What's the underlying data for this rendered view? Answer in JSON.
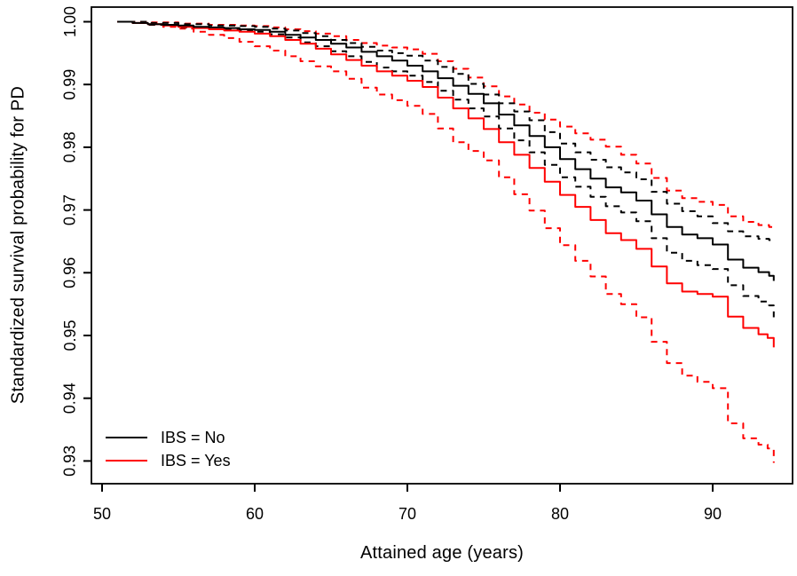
{
  "figure": {
    "background": "#ffffff",
    "axis_color": "#000000",
    "text_color": "#000000"
  },
  "chart_data": {
    "type": "line",
    "title": "",
    "xlabel": "Attained age (years)",
    "ylabel": "Standardized survival probability for PD",
    "xlim": [
      49.3,
      95.2
    ],
    "ylim": [
      0.9264,
      1.0023
    ],
    "grid": false,
    "x_ticks": [
      50,
      60,
      70,
      80,
      90
    ],
    "y_ticks": [
      "1.00",
      "0.99",
      "0.98",
      "0.97",
      "0.96",
      "0.95",
      "0.94",
      "0.93"
    ],
    "y_tick_values": [
      1.0,
      0.99,
      0.98,
      0.97,
      0.96,
      0.95,
      0.94,
      0.93
    ],
    "legend": {
      "position": "bottom-left",
      "entries": [
        {
          "label": "IBS = No",
          "color": "#000000"
        },
        {
          "label": "IBS = Yes",
          "color": "#ff0000"
        }
      ]
    },
    "series": [
      {
        "name": "IBS = Yes lower 95% CI",
        "color": "#ff0000",
        "style": "dashed",
        "points": [
          [
            51,
            1.0
          ],
          [
            52,
            0.9998
          ],
          [
            53,
            0.9995
          ],
          [
            54,
            0.9992
          ],
          [
            55,
            0.9989
          ],
          [
            56,
            0.9984
          ],
          [
            57,
            0.9979
          ],
          [
            58,
            0.9974
          ],
          [
            59,
            0.9968
          ],
          [
            60,
            0.9961
          ],
          [
            61,
            0.9954
          ],
          [
            62,
            0.9945
          ],
          [
            63,
            0.9937
          ],
          [
            64,
            0.9929
          ],
          [
            65,
            0.9921
          ],
          [
            66,
            0.9909
          ],
          [
            67,
            0.9895
          ],
          [
            68,
            0.9884
          ],
          [
            69,
            0.9875
          ],
          [
            70,
            0.9866
          ],
          [
            71,
            0.9853
          ],
          [
            72,
            0.983
          ],
          [
            73,
            0.9808
          ],
          [
            74,
            0.9794
          ],
          [
            75,
            0.9779
          ],
          [
            76,
            0.9752
          ],
          [
            77,
            0.9725
          ],
          [
            78,
            0.9699
          ],
          [
            79,
            0.9671
          ],
          [
            80,
            0.9644
          ],
          [
            81,
            0.9619
          ],
          [
            82,
            0.9594
          ],
          [
            83,
            0.9566
          ],
          [
            84,
            0.955
          ],
          [
            85,
            0.9529
          ],
          [
            86,
            0.949
          ],
          [
            87,
            0.9456
          ],
          [
            88,
            0.9436
          ],
          [
            89,
            0.9426
          ],
          [
            90,
            0.9416
          ],
          [
            91,
            0.936
          ],
          [
            92,
            0.9336
          ],
          [
            93,
            0.9326
          ],
          [
            93.6,
            0.932
          ],
          [
            94,
            0.9297
          ]
        ]
      },
      {
        "name": "IBS = Yes upper 95% CI",
        "color": "#ff0000",
        "style": "dashed",
        "points": [
          [
            51,
            1.0
          ],
          [
            53,
            0.9999
          ],
          [
            55,
            0.9997
          ],
          [
            57,
            0.9995
          ],
          [
            59,
            0.9994
          ],
          [
            60,
            0.9993
          ],
          [
            61,
            0.9991
          ],
          [
            62,
            0.9988
          ],
          [
            63,
            0.9985
          ],
          [
            64,
            0.9981
          ],
          [
            65,
            0.9977
          ],
          [
            66,
            0.9971
          ],
          [
            67,
            0.9966
          ],
          [
            68,
            0.9962
          ],
          [
            69,
            0.9959
          ],
          [
            70,
            0.9956
          ],
          [
            71,
            0.9949
          ],
          [
            72,
            0.9937
          ],
          [
            73,
            0.9925
          ],
          [
            74,
            0.9911
          ],
          [
            75,
            0.9897
          ],
          [
            76,
            0.9881
          ],
          [
            77,
            0.9868
          ],
          [
            78,
            0.9855
          ],
          [
            79,
            0.9844
          ],
          [
            80,
            0.9833
          ],
          [
            81,
            0.9822
          ],
          [
            82,
            0.9812
          ],
          [
            83,
            0.9801
          ],
          [
            84,
            0.9788
          ],
          [
            85,
            0.9774
          ],
          [
            86,
            0.9751
          ],
          [
            87,
            0.9731
          ],
          [
            88,
            0.9719
          ],
          [
            89,
            0.9713
          ],
          [
            90,
            0.9708
          ],
          [
            91,
            0.969
          ],
          [
            92,
            0.9681
          ],
          [
            93,
            0.9676
          ],
          [
            93.7,
            0.9673
          ],
          [
            94,
            0.9669
          ]
        ]
      },
      {
        "name": "IBS = No lower 95% CI",
        "color": "#000000",
        "style": "dashed",
        "points": [
          [
            51,
            1.0
          ],
          [
            53,
            0.9995
          ],
          [
            55,
            0.9991
          ],
          [
            57,
            0.9988
          ],
          [
            59,
            0.9986
          ],
          [
            60,
            0.9984
          ],
          [
            61,
            0.998
          ],
          [
            62,
            0.9975
          ],
          [
            63,
            0.9967
          ],
          [
            64,
            0.9961
          ],
          [
            65,
            0.9953
          ],
          [
            66,
            0.9945
          ],
          [
            67,
            0.9936
          ],
          [
            68,
            0.9927
          ],
          [
            69,
            0.9921
          ],
          [
            70,
            0.9914
          ],
          [
            71,
            0.9904
          ],
          [
            72,
            0.989
          ],
          [
            73,
            0.9876
          ],
          [
            74,
            0.9862
          ],
          [
            75,
            0.9849
          ],
          [
            76,
            0.983
          ],
          [
            77,
            0.9811
          ],
          [
            78,
            0.9792
          ],
          [
            79,
            0.9772
          ],
          [
            80,
            0.9752
          ],
          [
            81,
            0.9737
          ],
          [
            82,
            0.9721
          ],
          [
            83,
            0.9706
          ],
          [
            84,
            0.9696
          ],
          [
            85,
            0.9682
          ],
          [
            86,
            0.9655
          ],
          [
            87,
            0.9632
          ],
          [
            88,
            0.9619
          ],
          [
            89,
            0.9612
          ],
          [
            90,
            0.9606
          ],
          [
            91,
            0.958
          ],
          [
            92,
            0.9563
          ],
          [
            93,
            0.9554
          ],
          [
            93.7,
            0.9548
          ],
          [
            94,
            0.9529
          ]
        ]
      },
      {
        "name": "IBS = No upper 95% CI",
        "color": "#000000",
        "style": "dashed",
        "points": [
          [
            51,
            1.0
          ],
          [
            53,
            0.9998
          ],
          [
            55,
            0.9996
          ],
          [
            57,
            0.9994
          ],
          [
            59,
            0.9993
          ],
          [
            60,
            0.9992
          ],
          [
            61,
            0.9989
          ],
          [
            62,
            0.9986
          ],
          [
            63,
            0.9982
          ],
          [
            64,
            0.9977
          ],
          [
            65,
            0.9971
          ],
          [
            66,
            0.9966
          ],
          [
            67,
            0.996
          ],
          [
            68,
            0.9954
          ],
          [
            69,
            0.995
          ],
          [
            70,
            0.9946
          ],
          [
            71,
            0.9938
          ],
          [
            72,
            0.9928
          ],
          [
            73,
            0.9917
          ],
          [
            74,
            0.9901
          ],
          [
            75,
            0.9884
          ],
          [
            76,
            0.987
          ],
          [
            77,
            0.9857
          ],
          [
            78,
            0.9843
          ],
          [
            79,
            0.9824
          ],
          [
            80,
            0.9806
          ],
          [
            81,
            0.9792
          ],
          [
            82,
            0.978
          ],
          [
            83,
            0.9768
          ],
          [
            84,
            0.976
          ],
          [
            85,
            0.9749
          ],
          [
            86,
            0.9729
          ],
          [
            87,
            0.971
          ],
          [
            88,
            0.9698
          ],
          [
            89,
            0.969
          ],
          [
            90,
            0.9679
          ],
          [
            91,
            0.9666
          ],
          [
            92,
            0.9658
          ],
          [
            93,
            0.9654
          ],
          [
            93.7,
            0.9652
          ],
          [
            94,
            0.9649
          ]
        ]
      },
      {
        "name": "IBS = Yes",
        "color": "#ff0000",
        "style": "solid",
        "points": [
          [
            51,
            1.0
          ],
          [
            52,
            0.9998
          ],
          [
            53,
            0.9996
          ],
          [
            54,
            0.9994
          ],
          [
            55,
            0.9992
          ],
          [
            56,
            0.999
          ],
          [
            57,
            0.9988
          ],
          [
            58,
            0.9986
          ],
          [
            59,
            0.9984
          ],
          [
            60,
            0.9981
          ],
          [
            61,
            0.9977
          ],
          [
            62,
            0.9971
          ],
          [
            63,
            0.9965
          ],
          [
            64,
            0.9957
          ],
          [
            65,
            0.9948
          ],
          [
            66,
            0.9939
          ],
          [
            67,
            0.993
          ],
          [
            68,
            0.9921
          ],
          [
            69,
            0.9914
          ],
          [
            70,
            0.9906
          ],
          [
            71,
            0.9896
          ],
          [
            72,
            0.9879
          ],
          [
            73,
            0.9862
          ],
          [
            74,
            0.9846
          ],
          [
            75,
            0.9829
          ],
          [
            76,
            0.9808
          ],
          [
            77,
            0.9788
          ],
          [
            78,
            0.9767
          ],
          [
            79,
            0.9745
          ],
          [
            80,
            0.9724
          ],
          [
            81,
            0.9705
          ],
          [
            82,
            0.9684
          ],
          [
            83,
            0.9663
          ],
          [
            84,
            0.9652
          ],
          [
            85,
            0.9638
          ],
          [
            86,
            0.961
          ],
          [
            87,
            0.9583
          ],
          [
            88,
            0.957
          ],
          [
            89,
            0.9566
          ],
          [
            90,
            0.9562
          ],
          [
            91,
            0.953
          ],
          [
            92,
            0.9512
          ],
          [
            93,
            0.9502
          ],
          [
            93.6,
            0.9496
          ],
          [
            94,
            0.9481
          ]
        ]
      },
      {
        "name": "IBS = No",
        "color": "#000000",
        "style": "solid",
        "points": [
          [
            51,
            1.0
          ],
          [
            52,
            0.9998
          ],
          [
            53,
            0.9996
          ],
          [
            54,
            0.9995
          ],
          [
            55,
            0.9994
          ],
          [
            56,
            0.9992
          ],
          [
            57,
            0.9991
          ],
          [
            58,
            0.999
          ],
          [
            59,
            0.9988
          ],
          [
            60,
            0.9987
          ],
          [
            61,
            0.9984
          ],
          [
            62,
            0.9979
          ],
          [
            63,
            0.9975
          ],
          [
            64,
            0.9971
          ],
          [
            65,
            0.9965
          ],
          [
            66,
            0.9959
          ],
          [
            67,
            0.9952
          ],
          [
            68,
            0.9945
          ],
          [
            69,
            0.9938
          ],
          [
            70,
            0.993
          ],
          [
            71,
            0.9921
          ],
          [
            72,
            0.991
          ],
          [
            73,
            0.9898
          ],
          [
            74,
            0.9885
          ],
          [
            75,
            0.987
          ],
          [
            76,
            0.9852
          ],
          [
            77,
            0.9835
          ],
          [
            78,
            0.9818
          ],
          [
            79,
            0.98
          ],
          [
            80,
            0.9781
          ],
          [
            81,
            0.9765
          ],
          [
            82,
            0.975
          ],
          [
            83,
            0.9736
          ],
          [
            84,
            0.9728
          ],
          [
            85,
            0.9715
          ],
          [
            86,
            0.9693
          ],
          [
            87,
            0.9673
          ],
          [
            88,
            0.9661
          ],
          [
            89,
            0.9655
          ],
          [
            90,
            0.9645
          ],
          [
            91,
            0.9621
          ],
          [
            92,
            0.9608
          ],
          [
            93,
            0.9601
          ],
          [
            93.7,
            0.9595
          ],
          [
            94,
            0.9587
          ]
        ]
      }
    ]
  }
}
